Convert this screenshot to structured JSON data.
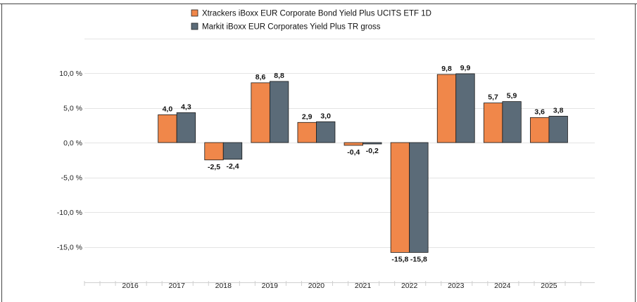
{
  "chart_data": {
    "type": "bar",
    "categories": [
      "2016",
      "2017",
      "2018",
      "2019",
      "2020",
      "2021",
      "2022",
      "2023",
      "2024",
      "2025"
    ],
    "series": [
      {
        "name": "Xtrackers iBoxx EUR Corporate Bond Yield Plus UCITS ETF 1D",
        "color": "#f0874a",
        "values": [
          null,
          4.0,
          -2.5,
          8.6,
          2.9,
          -0.4,
          -15.8,
          9.8,
          5.7,
          3.6
        ],
        "labels": [
          "",
          "4,0",
          "-2,5",
          "8,6",
          "2,9",
          "-0,4",
          "-15,8",
          "9,8",
          "5,7",
          "3,6"
        ]
      },
      {
        "name": "Markit iBoxx EUR Corporates Yield Plus TR gross",
        "color": "#5b6b78",
        "values": [
          null,
          4.3,
          -2.4,
          8.8,
          3.0,
          -0.2,
          -15.8,
          9.9,
          5.9,
          3.8
        ],
        "labels": [
          "",
          "4,3",
          "-2,4",
          "8,8",
          "3,0",
          "-0,2",
          "-15,8",
          "9,9",
          "5,9",
          "3,8"
        ]
      }
    ],
    "y_ticks": [
      {
        "value": 10,
        "label": "10,0 %"
      },
      {
        "value": 5,
        "label": "5,0 %"
      },
      {
        "value": 0,
        "label": "0,0 %"
      },
      {
        "value": -5,
        "label": "-5,0 %"
      },
      {
        "value": -10,
        "label": "-10,0 %"
      },
      {
        "value": -15,
        "label": "-15,0 %"
      }
    ],
    "ylim": [
      -20,
      15
    ],
    "grid": true,
    "legend_position": "top",
    "title": "",
    "xlabel": "",
    "ylabel": ""
  }
}
